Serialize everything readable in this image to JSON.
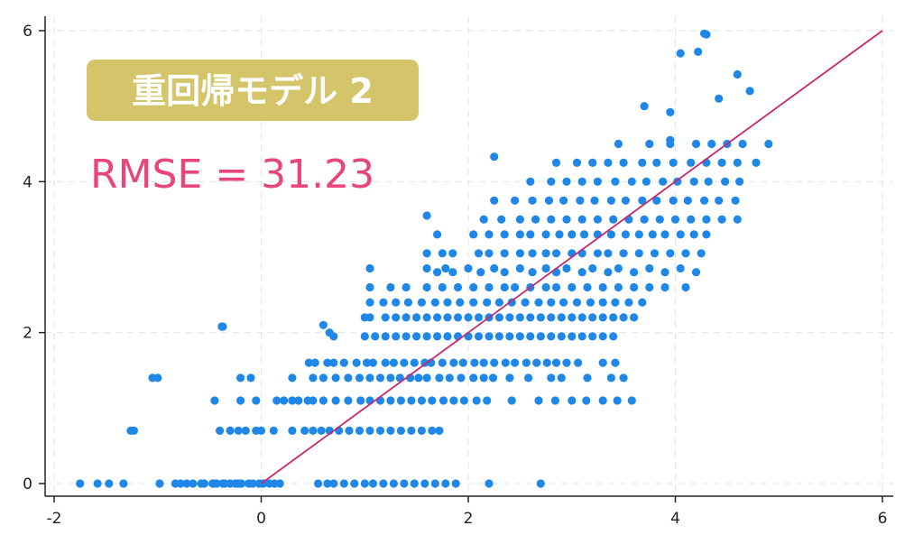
{
  "chart_data": {
    "type": "scatter",
    "title": "",
    "xlabel": "",
    "ylabel": "",
    "xlim": [
      -2,
      6
    ],
    "ylim": [
      0,
      6
    ],
    "x_ticks": [
      "-2",
      "0",
      "2",
      "4",
      "6"
    ],
    "y_ticks": [
      "0",
      "2",
      "4",
      "6"
    ],
    "grid": true,
    "badge": "重回帰モデル 2",
    "annotation": "RMSE = 31.23",
    "colors": {
      "points": "#1f87e8",
      "reference_line": "#c8286e",
      "badge_bg": "#d4c46a",
      "annotation": "#e8457a",
      "grid": "#e6e6e6"
    },
    "reference_line": {
      "x": [
        0,
        6
      ],
      "y": [
        0,
        6
      ]
    },
    "points": {
      "x": [
        -1.75,
        -1.58,
        -1.47,
        -1.33,
        -1.26,
        -1.23,
        -1.05,
        -0.98,
        -0.83,
        -0.78,
        -0.72,
        -0.66,
        -0.58,
        -0.55,
        -0.47,
        -0.46,
        -0.43,
        -0.37,
        -0.35,
        -0.3,
        -0.25,
        -0.22,
        -0.19,
        -0.12,
        -0.08,
        -0.02,
        0.02,
        0.08,
        0.13,
        0.18,
        -0.4,
        -0.3,
        -0.22,
        -0.15,
        -0.05,
        0.0,
        0.12,
        0.3,
        0.42,
        0.5,
        0.58,
        0.66,
        0.75,
        0.85,
        0.95,
        1.05,
        1.15,
        1.25,
        1.35,
        1.45,
        1.55,
        1.65,
        1.72,
        0.55,
        0.64,
        0.7,
        0.8,
        0.9,
        1.0,
        1.08,
        1.18,
        1.28,
        1.38,
        1.48,
        1.58,
        1.68,
        1.78,
        1.88,
        2.2,
        2.7,
        -0.45,
        -0.2,
        -0.05,
        0.15,
        0.22,
        0.3,
        0.36,
        0.45,
        0.5,
        0.6,
        0.72,
        0.84,
        0.96,
        1.05,
        1.15,
        1.25,
        1.35,
        1.45,
        1.55,
        1.65,
        1.76,
        1.86,
        1.96,
        2.08,
        2.18,
        2.42,
        2.68,
        2.84,
        3.0,
        3.14,
        3.3,
        3.44,
        3.58,
        -1.0,
        -0.2,
        -0.1,
        0.3,
        0.5,
        0.6,
        0.72,
        0.84,
        0.95,
        1.05,
        1.15,
        1.25,
        1.34,
        1.44,
        1.52,
        1.6,
        1.72,
        1.82,
        1.93,
        2.05,
        2.15,
        2.24,
        2.4,
        2.58,
        2.8,
        2.9,
        3.15,
        3.38,
        3.5,
        0.46,
        0.52,
        0.64,
        0.7,
        0.8,
        0.92,
        1.02,
        1.08,
        1.2,
        1.28,
        1.38,
        1.48,
        1.58,
        1.64,
        1.75,
        1.86,
        1.95,
        2.06,
        2.15,
        2.25,
        2.36,
        2.45,
        2.56,
        2.66,
        2.76,
        2.85,
        2.95,
        3.06,
        3.3,
        3.42,
        0.7,
        1.0,
        1.1,
        1.2,
        1.3,
        1.4,
        1.5,
        1.6,
        1.7,
        1.8,
        1.9,
        2.0,
        2.1,
        2.2,
        2.3,
        2.4,
        2.5,
        2.6,
        2.7,
        2.8,
        2.9,
        3.0,
        3.1,
        3.2,
        3.3,
        3.4,
        -0.37,
        0.6,
        0.66,
        1.0,
        1.05,
        1.2,
        1.3,
        1.4,
        1.5,
        1.6,
        1.7,
        1.8,
        1.9,
        2.0,
        2.1,
        2.2,
        2.3,
        2.4,
        2.5,
        2.6,
        2.7,
        2.8,
        2.9,
        3.0,
        3.1,
        3.2,
        3.3,
        3.4,
        3.5,
        3.6,
        1.05,
        1.18,
        1.3,
        1.42,
        1.55,
        1.68,
        1.8,
        1.92,
        2.05,
        2.18,
        2.3,
        2.42,
        2.55,
        2.68,
        2.8,
        2.92,
        3.05,
        3.18,
        3.3,
        3.42,
        3.55,
        3.68,
        1.05,
        1.25,
        1.4,
        1.6,
        1.75,
        1.9,
        2.05,
        2.2,
        2.35,
        2.45,
        2.6,
        2.75,
        2.85,
        3.0,
        3.15,
        3.3,
        3.45,
        3.6,
        3.75,
        3.9,
        4.1,
        1.6,
        1.7,
        1.78,
        1.85,
        2.0,
        2.12,
        2.25,
        2.35,
        2.5,
        2.62,
        2.75,
        2.85,
        2.95,
        3.1,
        3.2,
        3.35,
        3.45,
        3.6,
        3.75,
        3.9,
        4.05,
        4.2,
        1.6,
        1.75,
        1.85,
        2.1,
        2.2,
        2.35,
        2.5,
        2.62,
        2.75,
        2.85,
        3.0,
        3.1,
        3.25,
        3.35,
        3.5,
        3.65,
        3.8,
        3.95,
        4.1,
        4.25,
        1.7,
        2.05,
        2.2,
        2.35,
        2.5,
        2.6,
        2.75,
        2.88,
        3.0,
        3.12,
        3.25,
        3.38,
        3.52,
        3.65,
        3.78,
        3.9,
        4.05,
        4.18,
        4.3,
        2.15,
        2.32,
        2.5,
        2.65,
        2.8,
        2.95,
        3.1,
        3.25,
        3.4,
        3.55,
        3.7,
        3.85,
        4.0,
        4.15,
        4.3,
        4.45,
        4.6,
        2.25,
        2.45,
        2.62,
        2.78,
        2.92,
        3.08,
        3.22,
        3.38,
        3.52,
        3.68,
        3.82,
        3.98,
        4.12,
        4.28,
        4.42,
        4.58,
        2.6,
        2.8,
        2.95,
        3.1,
        3.25,
        3.42,
        3.58,
        3.72,
        3.88,
        4.02,
        4.18,
        4.32,
        4.48,
        4.62,
        2.85,
        3.05,
        3.2,
        3.35,
        3.5,
        3.68,
        3.82,
        3.98,
        4.15,
        4.3,
        4.45,
        4.6,
        4.78,
        3.45,
        3.75,
        3.95,
        4.2,
        4.35,
        4.5,
        4.65,
        4.9,
        4.05,
        4.22,
        4.28,
        4.6,
        4.72,
        -0.38,
        1.05,
        1.6,
        2.25,
        3.7,
        3.95,
        4.3,
        4.42,
        3.95
      ],
      "y": [
        0,
        0,
        0,
        0,
        0.7,
        0.7,
        1.4,
        0,
        0,
        0,
        0,
        0,
        0,
        0,
        0,
        0,
        0,
        0,
        0,
        0,
        0,
        0,
        0,
        0,
        0,
        0,
        0,
        0,
        0,
        0,
        0.7,
        0.7,
        0.7,
        0.7,
        0.7,
        0.7,
        0.7,
        0.7,
        0.7,
        0.7,
        0.7,
        0.7,
        0.7,
        0.7,
        0.7,
        0.7,
        0.7,
        0.7,
        0.7,
        0.7,
        0.7,
        0.7,
        0.7,
        0,
        0,
        0,
        0,
        0,
        0,
        0,
        0,
        0,
        0,
        0,
        0,
        0,
        0,
        0,
        0,
        0,
        1.1,
        1.1,
        1.1,
        1.1,
        1.1,
        1.1,
        1.1,
        1.1,
        1.1,
        1.1,
        1.1,
        1.1,
        1.1,
        1.1,
        1.1,
        1.1,
        1.1,
        1.1,
        1.1,
        1.1,
        1.1,
        1.1,
        1.1,
        1.1,
        1.1,
        1.1,
        1.1,
        1.1,
        1.1,
        1.1,
        1.1,
        1.1,
        1.1,
        1.4,
        1.4,
        1.4,
        1.4,
        1.4,
        1.4,
        1.4,
        1.4,
        1.4,
        1.4,
        1.4,
        1.4,
        1.4,
        1.4,
        1.4,
        1.4,
        1.4,
        1.4,
        1.4,
        1.4,
        1.4,
        1.4,
        1.4,
        1.4,
        1.4,
        1.4,
        1.4,
        1.4,
        1.4,
        1.6,
        1.6,
        1.6,
        1.6,
        1.6,
        1.6,
        1.6,
        1.6,
        1.6,
        1.6,
        1.6,
        1.6,
        1.6,
        1.6,
        1.6,
        1.6,
        1.6,
        1.6,
        1.6,
        1.6,
        1.6,
        1.6,
        1.6,
        1.6,
        1.6,
        1.6,
        1.6,
        1.6,
        1.6,
        1.6,
        1.95,
        1.95,
        1.95,
        1.95,
        1.95,
        1.95,
        1.95,
        1.95,
        1.95,
        1.95,
        1.95,
        1.95,
        1.95,
        1.95,
        1.95,
        1.95,
        1.95,
        1.95,
        1.95,
        1.95,
        1.95,
        1.95,
        1.95,
        1.95,
        1.95,
        1.95,
        2.08,
        2.1,
        2.0,
        2.2,
        2.2,
        2.2,
        2.2,
        2.2,
        2.2,
        2.2,
        2.2,
        2.2,
        2.2,
        2.2,
        2.2,
        2.2,
        2.2,
        2.2,
        2.2,
        2.2,
        2.2,
        2.2,
        2.2,
        2.2,
        2.2,
        2.2,
        2.2,
        2.2,
        2.2,
        2.2,
        2.4,
        2.4,
        2.4,
        2.4,
        2.4,
        2.4,
        2.4,
        2.4,
        2.4,
        2.4,
        2.4,
        2.4,
        2.4,
        2.4,
        2.4,
        2.4,
        2.4,
        2.4,
        2.4,
        2.4,
        2.4,
        2.4,
        2.6,
        2.6,
        2.6,
        2.6,
        2.6,
        2.6,
        2.6,
        2.6,
        2.6,
        2.6,
        2.6,
        2.6,
        2.6,
        2.6,
        2.6,
        2.6,
        2.6,
        2.6,
        2.6,
        2.6,
        2.6,
        2.85,
        2.8,
        2.85,
        2.8,
        2.85,
        2.8,
        2.85,
        2.8,
        2.85,
        2.8,
        2.85,
        2.8,
        2.85,
        2.8,
        2.85,
        2.8,
        2.85,
        2.8,
        2.85,
        2.8,
        2.85,
        2.8,
        3.05,
        3.05,
        3.05,
        3.05,
        3.05,
        3.05,
        3.05,
        3.05,
        3.05,
        3.05,
        3.05,
        3.05,
        3.05,
        3.05,
        3.05,
        3.05,
        3.05,
        3.05,
        3.05,
        3.05,
        3.3,
        3.3,
        3.3,
        3.3,
        3.3,
        3.3,
        3.3,
        3.3,
        3.3,
        3.3,
        3.3,
        3.3,
        3.3,
        3.3,
        3.3,
        3.3,
        3.3,
        3.3,
        3.3,
        3.5,
        3.5,
        3.5,
        3.5,
        3.5,
        3.5,
        3.5,
        3.5,
        3.5,
        3.5,
        3.5,
        3.5,
        3.5,
        3.5,
        3.5,
        3.5,
        3.5,
        3.75,
        3.75,
        3.75,
        3.75,
        3.75,
        3.75,
        3.75,
        3.75,
        3.75,
        3.75,
        3.75,
        3.75,
        3.75,
        3.75,
        3.75,
        3.75,
        4.0,
        4.0,
        4.0,
        4.0,
        4.0,
        4.0,
        4.0,
        4.0,
        4.0,
        4.0,
        4.0,
        4.0,
        4.0,
        4.0,
        4.25,
        4.25,
        4.25,
        4.25,
        4.25,
        4.25,
        4.25,
        4.25,
        4.25,
        4.25,
        4.25,
        4.25,
        4.25,
        4.5,
        4.5,
        4.5,
        4.5,
        4.5,
        4.5,
        4.5,
        4.5,
        5.7,
        5.72,
        5.96,
        5.42,
        5.2,
        2.08,
        2.85,
        3.55,
        4.33,
        5.0,
        4.92,
        5.95,
        5.1,
        4.55
      ]
    }
  }
}
